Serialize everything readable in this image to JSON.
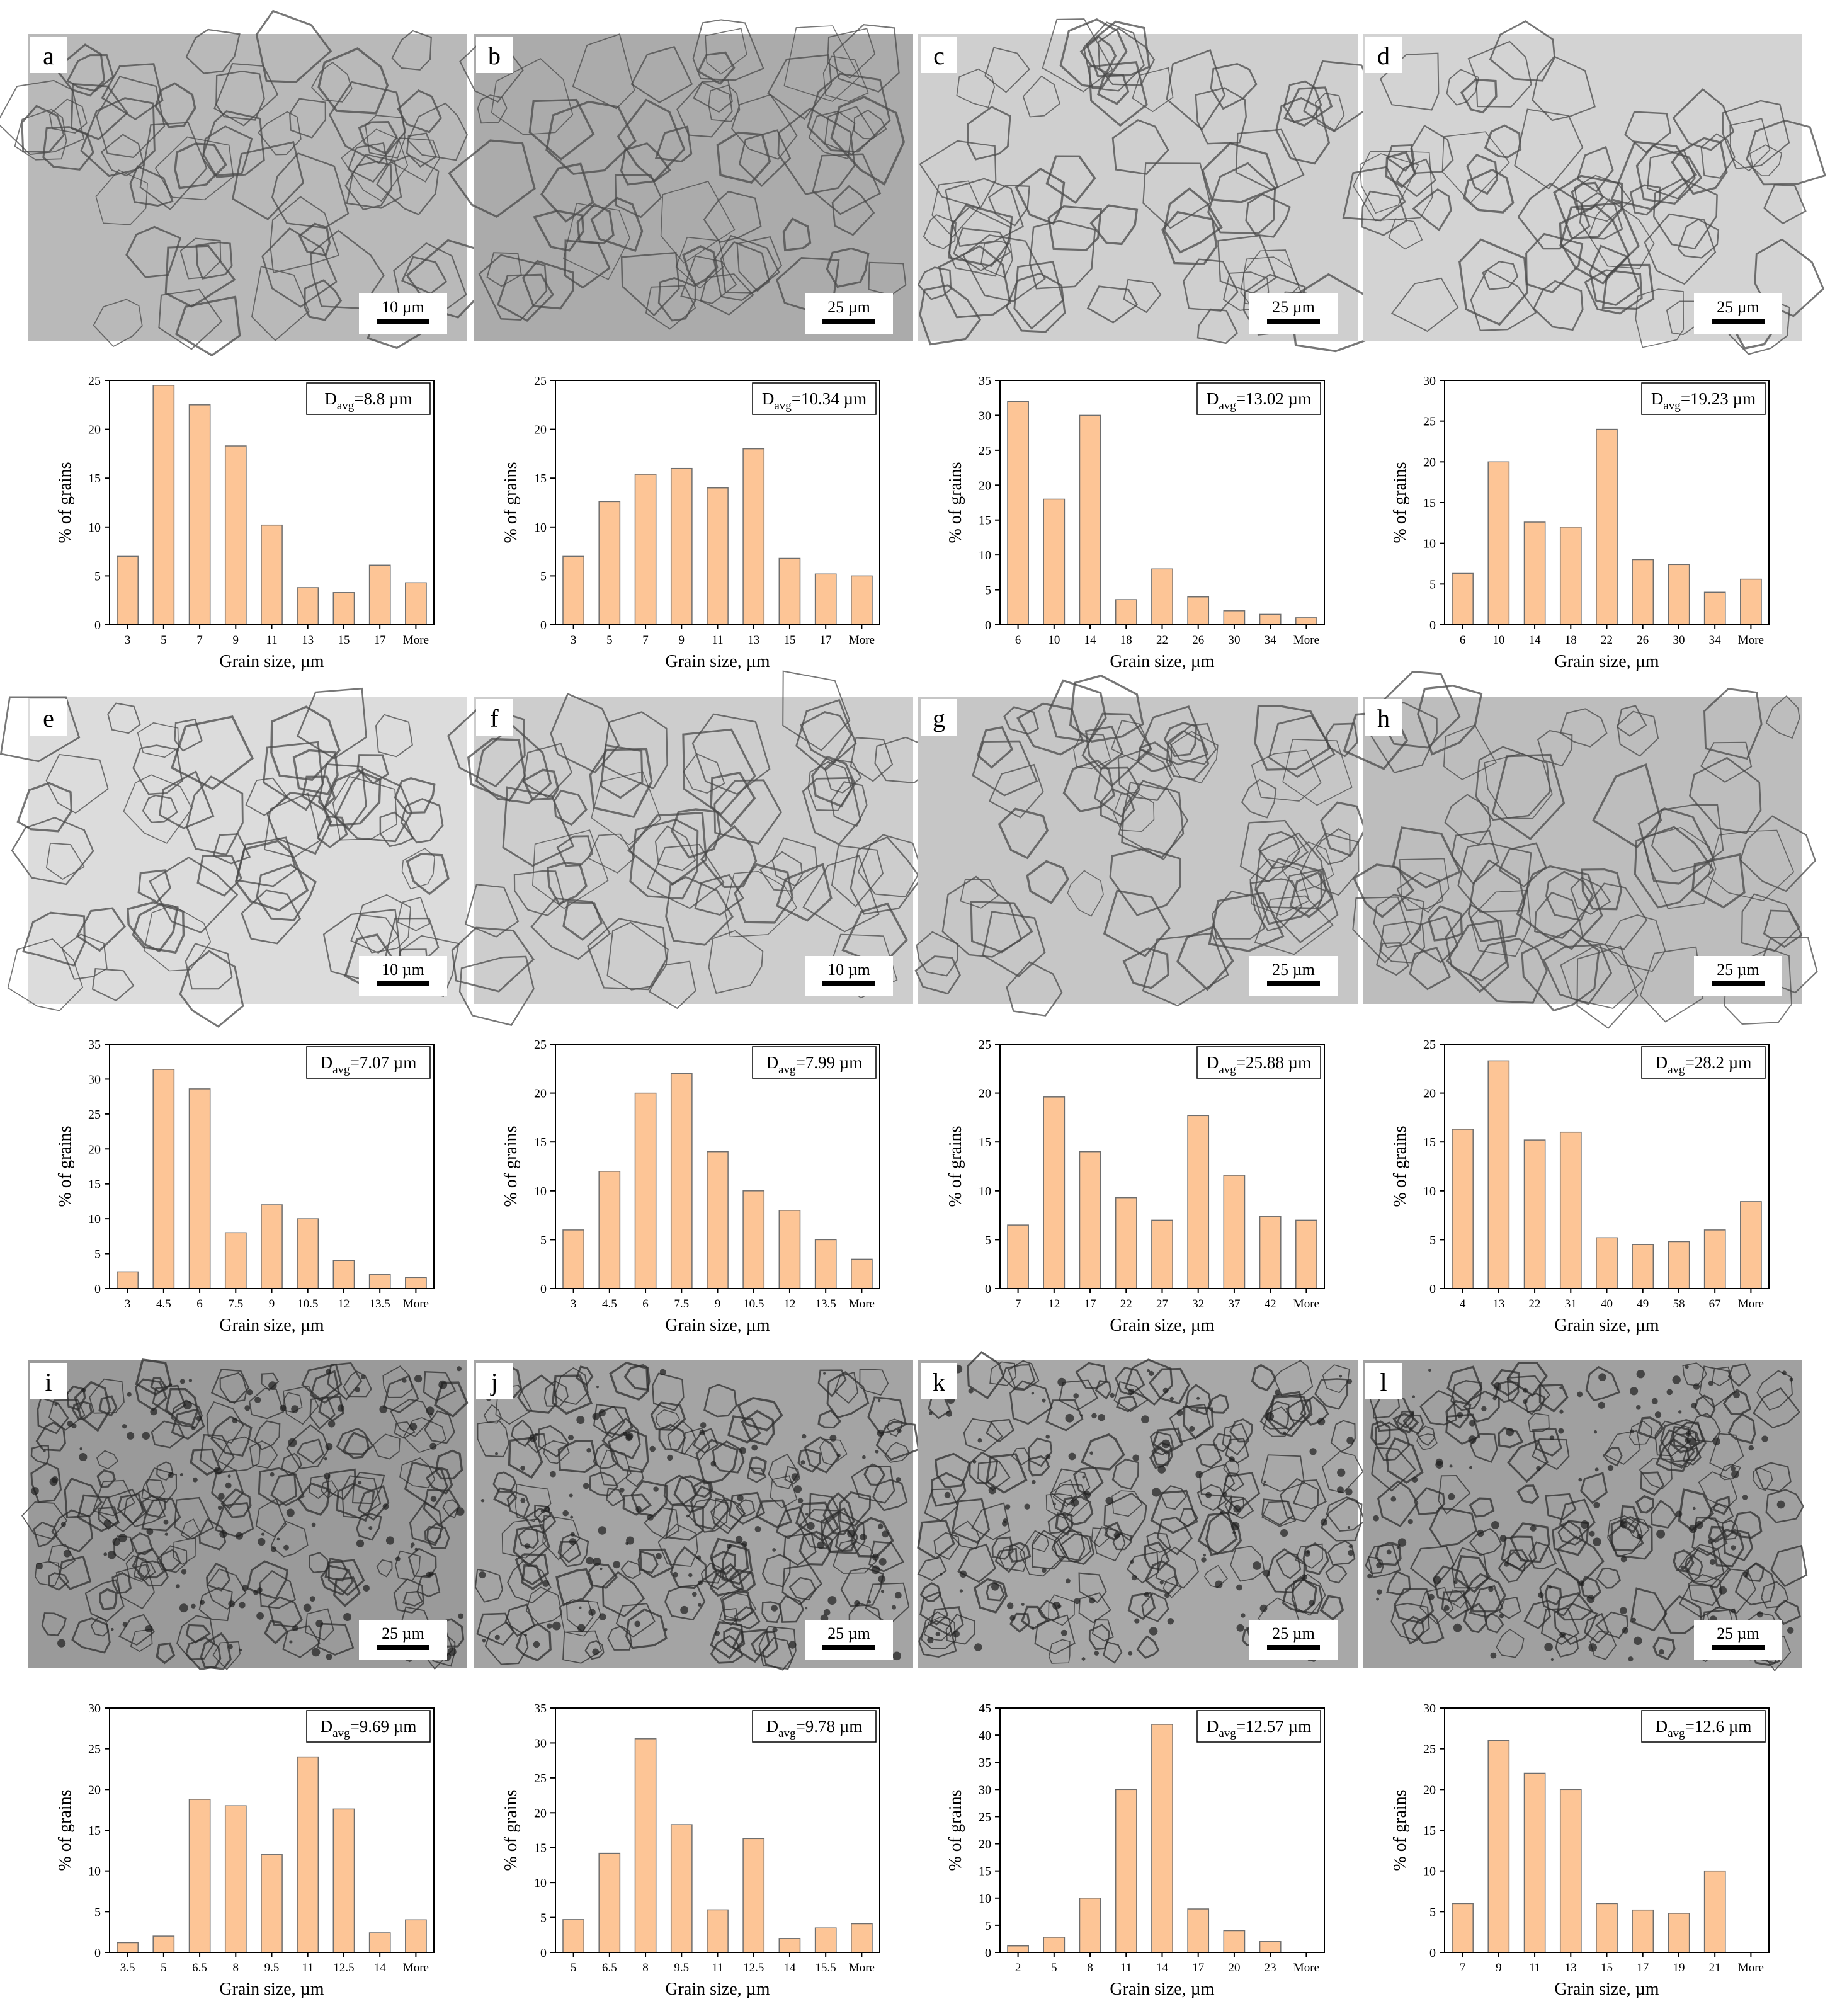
{
  "figure": {
    "xlabel": "Grain size, µm",
    "ylabel": "% of grains",
    "bar_fill": "#fdc596",
    "bar_stroke": "#6e6e6e",
    "panels": [
      {
        "letter": "a",
        "scale_bar": "10 µm",
        "micro_tone": "#b9b9b9"
      },
      {
        "letter": "b",
        "scale_bar": "25 µm",
        "micro_tone": "#ababab"
      },
      {
        "letter": "c",
        "scale_bar": "25 µm",
        "micro_tone": "#cfcfcf"
      },
      {
        "letter": "d",
        "scale_bar": "25 µm",
        "micro_tone": "#d3d3d3"
      },
      {
        "letter": "e",
        "scale_bar": "10 µm",
        "micro_tone": "#dcdcdc"
      },
      {
        "letter": "f",
        "scale_bar": "10 µm",
        "micro_tone": "#cdcdcd"
      },
      {
        "letter": "g",
        "scale_bar": "25 µm",
        "micro_tone": "#c6c6c6"
      },
      {
        "letter": "h",
        "scale_bar": "25 µm",
        "micro_tone": "#bdbdbd"
      },
      {
        "letter": "i",
        "scale_bar": "25 µm",
        "micro_tone": "#9a9a9a"
      },
      {
        "letter": "j",
        "scale_bar": "25 µm",
        "micro_tone": "#a4a4a4"
      },
      {
        "letter": "k",
        "scale_bar": "25 µm",
        "micro_tone": "#a8a8a8"
      },
      {
        "letter": "l",
        "scale_bar": "25 µm",
        "micro_tone": "#a0a0a0"
      }
    ]
  },
  "chart_data": [
    {
      "panel": "a",
      "type": "bar",
      "annotation_prefix": "D",
      "annotation_sub": "avg",
      "annotation_value": "=8.8 µm",
      "categories": [
        "3",
        "5",
        "7",
        "9",
        "11",
        "13",
        "15",
        "17",
        "More"
      ],
      "values": [
        7,
        24.5,
        22.5,
        18.3,
        10.2,
        3.8,
        3.3,
        6.1,
        4.3
      ],
      "ylim": [
        0,
        25
      ],
      "yticks": [
        0,
        5,
        10,
        15,
        20,
        25
      ]
    },
    {
      "panel": "b",
      "type": "bar",
      "annotation_prefix": "D",
      "annotation_sub": "avg",
      "annotation_value": "=10.34 µm",
      "categories": [
        "3",
        "5",
        "7",
        "9",
        "11",
        "13",
        "15",
        "17",
        "More"
      ],
      "values": [
        7,
        12.6,
        15.4,
        16,
        14,
        18,
        6.8,
        5.2,
        5
      ],
      "ylim": [
        0,
        25
      ],
      "yticks": [
        0,
        5,
        10,
        15,
        20,
        25
      ]
    },
    {
      "panel": "c",
      "type": "bar",
      "annotation_prefix": "D",
      "annotation_sub": "avg",
      "annotation_value": "=13.02 µm",
      "categories": [
        "6",
        "10",
        "14",
        "18",
        "22",
        "26",
        "30",
        "34",
        "More"
      ],
      "values": [
        32,
        18,
        30,
        3.6,
        8,
        4,
        2,
        1.5,
        1
      ],
      "ylim": [
        0,
        35
      ],
      "yticks": [
        0,
        5,
        10,
        15,
        20,
        25,
        30,
        35
      ]
    },
    {
      "panel": "d",
      "type": "bar",
      "annotation_prefix": "D",
      "annotation_sub": "avg",
      "annotation_value": "=19.23 µm",
      "categories": [
        "6",
        "10",
        "14",
        "18",
        "22",
        "26",
        "30",
        "34",
        "More"
      ],
      "values": [
        6.3,
        20,
        12.6,
        12,
        24,
        8,
        7.4,
        4,
        5.6
      ],
      "ylim": [
        0,
        30
      ],
      "yticks": [
        0,
        5,
        10,
        15,
        20,
        25,
        30
      ]
    },
    {
      "panel": "e",
      "type": "bar",
      "annotation_prefix": "D",
      "annotation_sub": "avg",
      "annotation_value": "=7.07 µm",
      "categories": [
        "3",
        "4.5",
        "6",
        "7.5",
        "9",
        "10.5",
        "12",
        "13.5",
        "More"
      ],
      "values": [
        2.4,
        31.4,
        28.6,
        8,
        12,
        10,
        4,
        2,
        1.6
      ],
      "ylim": [
        0,
        35
      ],
      "yticks": [
        0,
        5,
        10,
        15,
        20,
        25,
        30,
        35
      ]
    },
    {
      "panel": "f",
      "type": "bar",
      "annotation_prefix": "D",
      "annotation_sub": "avg",
      "annotation_value": "=7.99 µm",
      "categories": [
        "3",
        "4.5",
        "6",
        "7.5",
        "9",
        "10.5",
        "12",
        "13.5",
        "More"
      ],
      "values": [
        6,
        12,
        20,
        22,
        14,
        10,
        8,
        5,
        3
      ],
      "ylim": [
        0,
        25
      ],
      "yticks": [
        0,
        5,
        10,
        15,
        20,
        25
      ]
    },
    {
      "panel": "g",
      "type": "bar",
      "annotation_prefix": "D",
      "annotation_sub": "avg",
      "annotation_value": "=25.88 µm",
      "categories": [
        "7",
        "12",
        "17",
        "22",
        "27",
        "32",
        "37",
        "42",
        "More"
      ],
      "values": [
        6.5,
        19.6,
        14,
        9.3,
        7,
        17.7,
        11.6,
        7.4,
        7
      ],
      "ylim": [
        0,
        25
      ],
      "yticks": [
        0,
        5,
        10,
        15,
        20,
        25
      ]
    },
    {
      "panel": "h",
      "type": "bar",
      "annotation_prefix": "D",
      "annotation_sub": "avg",
      "annotation_value": "=28.2 µm",
      "categories": [
        "4",
        "13",
        "22",
        "31",
        "40",
        "49",
        "58",
        "67",
        "More"
      ],
      "values": [
        16.3,
        23.3,
        15.2,
        16,
        5.2,
        4.5,
        4.8,
        6,
        8.9
      ],
      "ylim": [
        0,
        25
      ],
      "yticks": [
        0,
        5,
        10,
        15,
        20,
        25
      ]
    },
    {
      "panel": "i",
      "type": "bar",
      "annotation_prefix": "D",
      "annotation_sub": "avg",
      "annotation_value": "=9.69 µm",
      "categories": [
        "3.5",
        "5",
        "6.5",
        "8",
        "9.5",
        "11",
        "12.5",
        "14",
        "More"
      ],
      "values": [
        1.2,
        2,
        18.8,
        18,
        12,
        24,
        17.6,
        2.4,
        4
      ],
      "ylim": [
        0,
        30
      ],
      "yticks": [
        0,
        5,
        10,
        15,
        20,
        25,
        30
      ]
    },
    {
      "panel": "j",
      "type": "bar",
      "annotation_prefix": "D",
      "annotation_sub": "avg",
      "annotation_value": "=9.78 µm",
      "categories": [
        "5",
        "6.5",
        "8",
        "9.5",
        "11",
        "12.5",
        "14",
        "15.5",
        "More"
      ],
      "values": [
        4.7,
        14.2,
        30.6,
        18.3,
        6.1,
        16.3,
        2,
        3.5,
        4.1
      ],
      "ylim": [
        0,
        35
      ],
      "yticks": [
        0,
        5,
        10,
        15,
        20,
        25,
        30,
        35
      ]
    },
    {
      "panel": "k",
      "type": "bar",
      "annotation_prefix": "D",
      "annotation_sub": "avg",
      "annotation_value": "=12.57 µm",
      "categories": [
        "2",
        "5",
        "8",
        "11",
        "14",
        "17",
        "20",
        "23",
        "More"
      ],
      "values": [
        1.2,
        2.8,
        10,
        30,
        42,
        8,
        4,
        2,
        0
      ],
      "ylim": [
        0,
        45
      ],
      "yticks": [
        0,
        5,
        10,
        15,
        20,
        25,
        30,
        35,
        40,
        45
      ]
    },
    {
      "panel": "l",
      "type": "bar",
      "annotation_prefix": "D",
      "annotation_sub": "avg",
      "annotation_value": "=12.6 µm",
      "categories": [
        "7",
        "9",
        "11",
        "13",
        "15",
        "17",
        "19",
        "21",
        "More"
      ],
      "values": [
        6,
        26,
        22,
        20,
        6,
        5.2,
        4.8,
        10,
        0
      ],
      "ylim": [
        0,
        30
      ],
      "yticks": [
        0,
        5,
        10,
        15,
        20,
        25,
        30
      ]
    }
  ]
}
